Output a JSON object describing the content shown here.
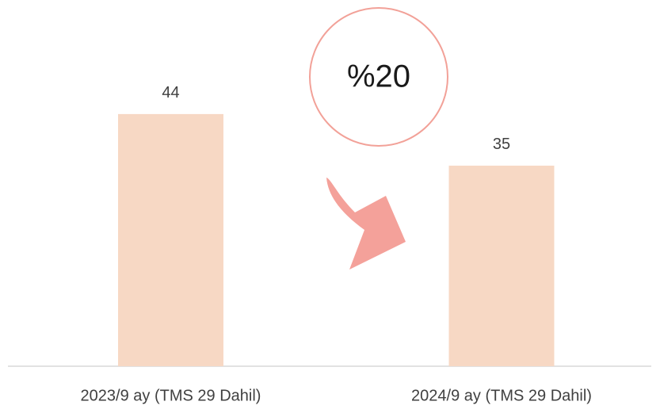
{
  "chart_data": {
    "type": "bar",
    "categories": [
      "2023/9 ay (TMS 29 Dahil)",
      "2024/9 ay (TMS 29 Dahil)"
    ],
    "values": [
      44,
      35
    ],
    "color": "#f7d8c4",
    "annotation": "%20"
  }
}
